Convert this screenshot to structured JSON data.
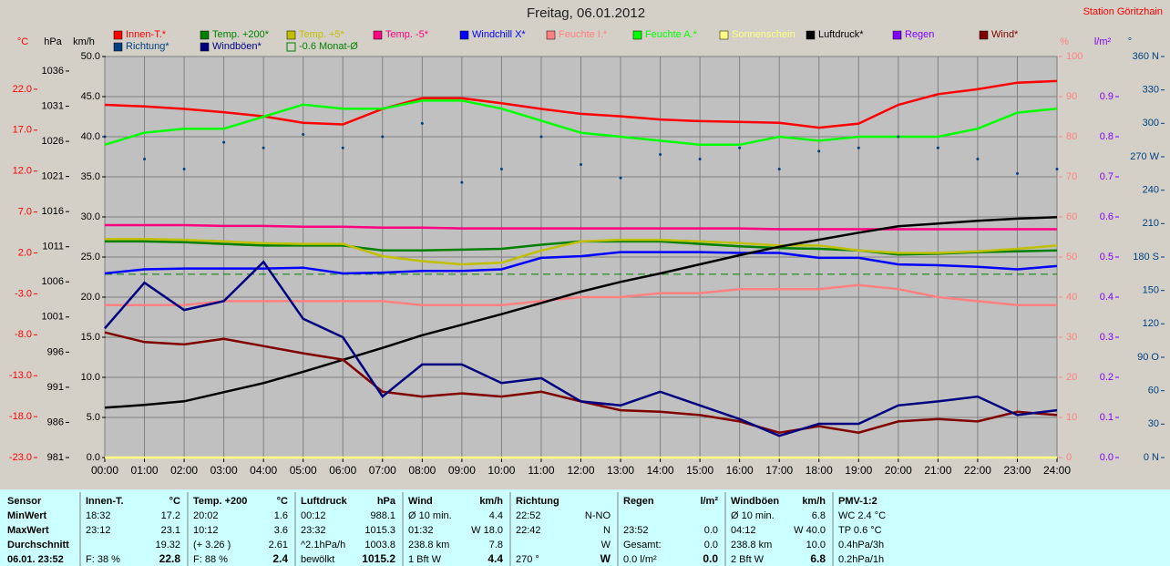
{
  "chart_data": {
    "type": "line",
    "title": "Freitag, 06.01.2012",
    "station": "Station Göritzhain",
    "grid": true,
    "x": [
      0,
      1,
      2,
      3,
      4,
      5,
      6,
      7,
      8,
      9,
      10,
      11,
      12,
      13,
      14,
      15,
      16,
      17,
      18,
      19,
      20,
      21,
      22,
      23,
      24
    ],
    "xlim": [
      0,
      24
    ],
    "xticks": [
      {
        "value": 0,
        "label": "00:00"
      },
      {
        "value": 1,
        "label": "01:00"
      },
      {
        "value": 2,
        "label": "02:00"
      },
      {
        "value": 3,
        "label": "03:00"
      },
      {
        "value": 4,
        "label": "04:00"
      },
      {
        "value": 5,
        "label": "05:00"
      },
      {
        "value": 6,
        "label": "06:00"
      },
      {
        "value": 7,
        "label": "07:00"
      },
      {
        "value": 8,
        "label": "08:00"
      },
      {
        "value": 9,
        "label": "09:00"
      },
      {
        "value": 10,
        "label": "10:00"
      },
      {
        "value": 11,
        "label": "11:00"
      },
      {
        "value": 12,
        "label": "12:00"
      },
      {
        "value": 13,
        "label": "13:00"
      },
      {
        "value": 14,
        "label": "14:00"
      },
      {
        "value": 15,
        "label": "15:00"
      },
      {
        "value": 16,
        "label": "16:00"
      },
      {
        "value": 17,
        "label": "17:00"
      },
      {
        "value": 18,
        "label": "18:00"
      },
      {
        "value": 19,
        "label": "19:00"
      },
      {
        "value": 20,
        "label": "20:00"
      },
      {
        "value": 21,
        "label": "21:00"
      },
      {
        "value": 22,
        "label": "22:00"
      },
      {
        "value": 23,
        "label": "23:00"
      },
      {
        "value": 24,
        "label": "24:00"
      }
    ],
    "axes": [
      {
        "id": "temp",
        "label": "°C",
        "color": "#ff0000",
        "lim": [
          -23,
          26
        ],
        "ticks": [
          {
            "value": -23,
            "label": "-23.0"
          },
          {
            "value": -18,
            "label": "-18.0"
          },
          {
            "value": -13,
            "label": "-13.0"
          },
          {
            "value": -8,
            "label": "-8.0"
          },
          {
            "value": -3,
            "label": "-3.0"
          },
          {
            "value": 2,
            "label": "2.0"
          },
          {
            "value": 7,
            "label": "7.0"
          },
          {
            "value": 12,
            "label": "12.0"
          },
          {
            "value": 17,
            "label": "17.0"
          },
          {
            "value": 22,
            "label": "22.0"
          }
        ]
      },
      {
        "id": "hpa",
        "label": "hPa",
        "color": "#000000",
        "lim": [
          981,
          1038.07
        ],
        "ticks": [
          981,
          986,
          991,
          996,
          1001,
          1006,
          1011,
          1016,
          1021,
          1026,
          1031,
          1036
        ]
      },
      {
        "id": "kmh",
        "label": "km/h",
        "color": "#000000",
        "lim": [
          0,
          50
        ],
        "ticks": [
          {
            "value": 0,
            "label": "0.0"
          },
          {
            "value": 5,
            "label": "5.0"
          },
          {
            "value": 10,
            "label": "10.0"
          },
          {
            "value": 15,
            "label": "15.0"
          },
          {
            "value": 20,
            "label": "20.0"
          },
          {
            "value": 25,
            "label": "25.0"
          },
          {
            "value": 30,
            "label": "30.0"
          },
          {
            "value": 35,
            "label": "35.0"
          },
          {
            "value": 40,
            "label": "40.0"
          },
          {
            "value": 45,
            "label": "45.0"
          },
          {
            "value": 50,
            "label": "50.0"
          }
        ]
      },
      {
        "id": "pct",
        "label": "%",
        "color": "#ff8080",
        "lim": [
          0,
          100
        ],
        "ticks": [
          0,
          10,
          20,
          30,
          40,
          50,
          60,
          70,
          80,
          90,
          100
        ]
      },
      {
        "id": "rain",
        "label": "l/m²",
        "color": "#8000ff",
        "lim": [
          0,
          1
        ],
        "ticks": [
          {
            "value": 0,
            "label": "0.0"
          },
          {
            "value": 0.1,
            "label": "0.1"
          },
          {
            "value": 0.2,
            "label": "0.2"
          },
          {
            "value": 0.3,
            "label": "0.3"
          },
          {
            "value": 0.4,
            "label": "0.4"
          },
          {
            "value": 0.5,
            "label": "0.5"
          },
          {
            "value": 0.6,
            "label": "0.6"
          },
          {
            "value": 0.7,
            "label": "0.7"
          },
          {
            "value": 0.8,
            "label": "0.8"
          },
          {
            "value": 0.9,
            "label": "0.9"
          }
        ]
      },
      {
        "id": "deg",
        "label": "°",
        "color": "#004080",
        "lim": [
          0,
          360
        ],
        "ticks": [
          {
            "value": 0,
            "label": "0 N"
          },
          30,
          60,
          {
            "value": 90,
            "label": "90 O"
          },
          120,
          150,
          {
            "value": 180,
            "label": "180 S"
          },
          210,
          240,
          {
            "value": 270,
            "label": "270 W"
          },
          300,
          330,
          {
            "value": 360,
            "label": "360 N"
          }
        ]
      }
    ],
    "series": [
      {
        "name": "Innen-T.*",
        "color": "#ff0000",
        "axis": "temp",
        "values": [
          20.1,
          19.9,
          19.6,
          19.2,
          18.7,
          17.9,
          17.7,
          19.6,
          20.9,
          20.9,
          20.3,
          19.6,
          19.0,
          18.7,
          18.3,
          18.1,
          18.0,
          17.9,
          17.3,
          17.8,
          20.1,
          21.4,
          22.0,
          22.8,
          23.0
        ]
      },
      {
        "name": "Temp. +200*",
        "color": "#008000",
        "axis": "temp",
        "values": [
          3.4,
          3.4,
          3.3,
          3.1,
          2.9,
          2.9,
          2.9,
          2.3,
          2.3,
          2.4,
          2.5,
          3.0,
          3.4,
          3.4,
          3.4,
          3.1,
          2.8,
          2.6,
          2.5,
          2.3,
          1.8,
          1.9,
          2.1,
          2.2,
          2.3
        ]
      },
      {
        "name": "Temp. +5*",
        "color": "#c0c000",
        "axis": "temp",
        "values": [
          3.7,
          3.7,
          3.6,
          3.4,
          3.2,
          3.1,
          3.1,
          1.6,
          1.0,
          0.6,
          0.8,
          2.3,
          3.4,
          3.6,
          3.6,
          3.4,
          3.2,
          2.9,
          2.9,
          2.3,
          2.0,
          2.0,
          2.2,
          2.5,
          2.9
        ]
      },
      {
        "name": "Temp. -5*",
        "color": "#ff0080",
        "axis": "temp",
        "values": [
          5.4,
          5.4,
          5.4,
          5.3,
          5.3,
          5.2,
          5.2,
          5.1,
          5.1,
          5.0,
          5.0,
          5.0,
          5.0,
          5.0,
          5.0,
          5.0,
          5.0,
          4.9,
          4.9,
          4.9,
          4.9,
          4.9,
          4.9,
          4.9,
          4.9
        ]
      },
      {
        "name": "Windchill X*",
        "color": "#0000ff",
        "axis": "temp",
        "values": [
          -0.5,
          0.0,
          0.1,
          0.1,
          0.1,
          0.2,
          -0.5,
          -0.4,
          -0.2,
          -0.2,
          0.0,
          1.4,
          1.6,
          2.1,
          2.1,
          2.1,
          2.0,
          2.0,
          1.4,
          1.4,
          0.6,
          0.5,
          0.3,
          0.0,
          0.4
        ]
      },
      {
        "name": "Feuchte I.*",
        "color": "#ff8080",
        "axis": "pct",
        "values": [
          38,
          38,
          38,
          39,
          39,
          39,
          39,
          39,
          38,
          38,
          38,
          39,
          40,
          40,
          41,
          41,
          42,
          42,
          42,
          43,
          42,
          40,
          39,
          38,
          38
        ]
      },
      {
        "name": "Feuchte A.*",
        "color": "#00ff00",
        "axis": "pct",
        "values": [
          78,
          81,
          82,
          82,
          85,
          88,
          87,
          87,
          89,
          89,
          87,
          84,
          81,
          80,
          79,
          78,
          78,
          80,
          79,
          80,
          80,
          80,
          82,
          86,
          87
        ]
      },
      {
        "name": "Sonnenschein",
        "color": "#ffff80",
        "axis": "pct",
        "values": [
          0,
          0,
          0,
          0,
          0,
          0,
          0,
          0,
          0,
          0,
          0,
          0,
          0,
          0,
          0,
          0,
          0,
          0,
          0,
          0,
          0,
          0,
          0,
          0,
          0
        ]
      },
      {
        "name": "Luftdruck*",
        "color": "#000000",
        "axis": "hpa",
        "values": [
          988.1,
          988.5,
          989.0,
          990.3,
          991.6,
          993.2,
          994.9,
          996.6,
          998.4,
          999.9,
          1001.4,
          1003.0,
          1004.6,
          1006.0,
          1007.2,
          1008.5,
          1009.8,
          1011.0,
          1012.0,
          1013.0,
          1013.9,
          1014.3,
          1014.7,
          1015.0,
          1015.2
        ]
      },
      {
        "name": "Regen",
        "color": "#8000ff",
        "axis": "rain"
      },
      {
        "name": "Wind*",
        "color": "#800000",
        "axis": "kmh",
        "values": [
          15.6,
          14.4,
          14.1,
          14.8,
          13.9,
          13.0,
          12.2,
          8.2,
          7.6,
          8.0,
          7.6,
          8.2,
          7.0,
          5.9,
          5.7,
          5.3,
          4.5,
          3.1,
          3.9,
          3.1,
          4.5,
          4.8,
          4.5,
          5.7,
          5.3
        ]
      },
      {
        "name": "Richtung*",
        "color": "#004080",
        "axis": "deg",
        "kind": "scatter",
        "values": [
          288,
          268,
          259,
          283,
          278,
          290,
          278,
          288,
          300,
          247,
          259,
          288,
          263,
          251,
          272,
          268,
          278,
          259,
          275,
          278,
          288,
          278,
          268,
          255,
          259
        ]
      },
      {
        "name": "Windböen*",
        "color": "#000080",
        "axis": "kmh",
        "values": [
          16.1,
          21.8,
          18.4,
          19.5,
          24.4,
          17.3,
          15.0,
          7.6,
          11.6,
          11.6,
          9.3,
          9.9,
          7.0,
          6.5,
          8.2,
          6.5,
          4.8,
          2.7,
          4.2,
          4.2,
          6.5,
          7.0,
          7.6,
          5.3,
          5.9
        ]
      }
    ],
    "reference": {
      "name": "-0.6 Monat-Ø",
      "value": -0.6,
      "axis": "temp",
      "color": "#008000"
    },
    "stats": {
      "rowlabels": [
        "Sensor",
        "MinWert",
        "MaxWert",
        "Durchschnitt",
        "06.01. 23:52"
      ],
      "columns": [
        {
          "name": "Innen-T.",
          "unit": "°C",
          "rows": [
            [
              "18:32",
              "17.2"
            ],
            [
              "23:12",
              "23.1"
            ],
            [
              null,
              "19.32"
            ],
            [
              "F: 38 %",
              "22.8"
            ]
          ]
        },
        {
          "name": "Temp. +200",
          "unit": "°C",
          "rows": [
            [
              "20:02",
              "1.6"
            ],
            [
              "10:12",
              "3.6"
            ],
            [
              "(+ 3.26 )",
              "2.61"
            ],
            [
              "F: 88 %",
              "2.4"
            ]
          ]
        },
        {
          "name": "Luftdruck",
          "unit": "hPa",
          "rows": [
            [
              "00:12",
              "988.1"
            ],
            [
              "23:32",
              "1015.3"
            ],
            [
              "^2.1hPa/h",
              "1003.8"
            ],
            [
              "bewölkt",
              "1015.2"
            ]
          ]
        },
        {
          "name": "Wind",
          "unit": "km/h",
          "rows": [
            [
              "Ø 10 min.",
              "4.4"
            ],
            [
              "01:32",
              "W 18.0"
            ],
            [
              "238.8 km",
              "7.8"
            ],
            [
              "1 Bft W",
              "4.4"
            ]
          ]
        },
        {
          "name": "Richtung",
          "unit": null,
          "rows": [
            [
              "22:52",
              "N-NO"
            ],
            [
              "22:42",
              "N"
            ],
            [
              null,
              "W"
            ],
            [
              "270 °",
              "W"
            ]
          ]
        },
        {
          "name": "Regen",
          "unit": "l/m²",
          "rows": [
            [
              null,
              null
            ],
            [
              "23:52",
              "0.0"
            ],
            [
              "Gesamt:",
              "0.0"
            ],
            [
              "0.0 l/m²",
              "0.0"
            ]
          ]
        },
        {
          "name": "Windböen",
          "unit": "km/h",
          "rows": [
            [
              "Ø 10 min.",
              "6.8"
            ],
            [
              "04:12",
              "W 40.0"
            ],
            [
              "238.8 km",
              "10.0"
            ],
            [
              "2 Bft W",
              "6.8"
            ]
          ]
        },
        {
          "name": "PMV-1:2",
          "unit": null,
          "rows": [
            [
              "WC 2.4 °C",
              null
            ],
            [
              "TP 0.6 °C",
              null
            ],
            [
              "0.4hPa/3h",
              null
            ],
            [
              "0.2hPa/1h",
              null
            ]
          ]
        }
      ]
    }
  }
}
